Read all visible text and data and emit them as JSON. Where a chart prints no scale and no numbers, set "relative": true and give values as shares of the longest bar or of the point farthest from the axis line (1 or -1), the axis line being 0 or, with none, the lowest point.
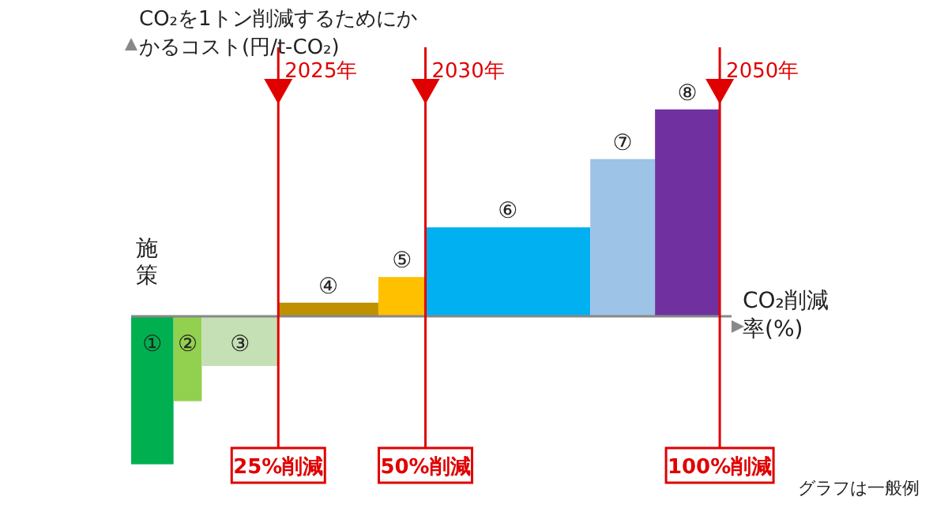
{
  "chart_data": {
    "type": "bar",
    "relative": true,
    "ylabel": "CO₂を1トン削減するためにかかるコスト(円/t-CO₂)",
    "xlabel": "CO₂削減率(%)",
    "xlim": [
      0,
      102
    ],
    "xticks": [
      {
        "value": 25,
        "label": "25%削減"
      },
      {
        "value": 50,
        "label": "50%削減"
      },
      {
        "value": 100,
        "label": "100%削減"
      }
    ],
    "tick_labels": "x",
    "series": [
      {
        "name": "①",
        "color": "#00b050",
        "x": [
          3.6
        ],
        "values": [
          -0.715
        ]
      },
      {
        "name": "②",
        "color": "#92d050",
        "x": [
          9.6
        ],
        "values": [
          -0.41
        ]
      },
      {
        "name": "③",
        "color": "#c5e0b4",
        "x": [
          18.5
        ],
        "values": [
          -0.24
        ]
      },
      {
        "name": "④",
        "color": "#bf9000",
        "x": [
          33.5
        ],
        "values": [
          0.066
        ]
      },
      {
        "name": "⑤",
        "color": "#ffc000",
        "x": [
          46
        ],
        "values": [
          0.19
        ]
      },
      {
        "name": "⑥",
        "color": "#00b0f0",
        "x": [
          64
        ],
        "values": [
          0.43
        ]
      },
      {
        "name": "⑦",
        "color": "#9dc3e6",
        "x": [
          83.5
        ],
        "values": [
          0.76
        ]
      },
      {
        "name": "⑧",
        "color": "#7030a0",
        "x": [
          94.5
        ],
        "values": [
          1
        ]
      }
    ],
    "ref_lines": [
      {
        "axis": "x",
        "value": 25,
        "color": "#e00000"
      },
      {
        "axis": "x",
        "value": 50,
        "color": "#e00000"
      },
      {
        "axis": "x",
        "value": 100,
        "color": "#e00000"
      }
    ],
    "annotations": [
      "施策",
      {
        "text": "2025年",
        "x": 25
      },
      {
        "text": "2030年",
        "x": 50
      },
      {
        "text": "2050年",
        "x": 100
      },
      "グラフは一般例"
    ]
  }
}
